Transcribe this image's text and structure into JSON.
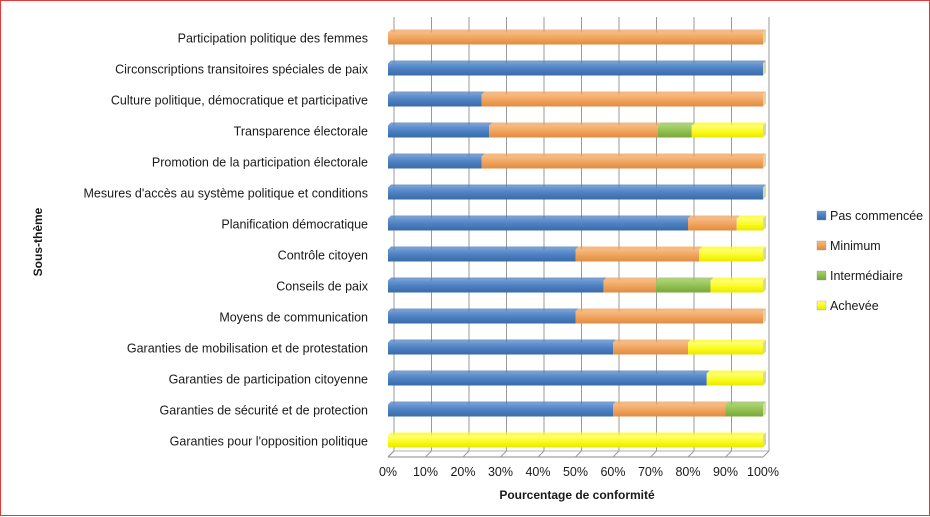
{
  "chart_data": {
    "type": "bar",
    "orientation": "horizontal",
    "stacked": true,
    "ylabel": "Sous-thème",
    "xlabel": "Pourcentage de conformité",
    "xlim": [
      0,
      100
    ],
    "xticks": [
      "0%",
      "10%",
      "20%",
      "30%",
      "40%",
      "50%",
      "60%",
      "70%",
      "80%",
      "90%",
      "100%"
    ],
    "grid": "vertical",
    "legend_position": "right",
    "categories": [
      "Participation politique des femmes",
      "Circonscriptions transitoires spéciales de paix",
      "Culture politique, démocratique et participative",
      "Transparence électorale",
      "Promotion de la participation électorale",
      "Mesures d'accès au système politique et conditions",
      "Planification démocratique",
      "Contrôle citoyen",
      "Conseils de paix",
      "Moyens de communication",
      "Garanties de mobilisation et de protestation",
      "Garanties de participation citoyenne",
      "Garanties de sécurité et de protection",
      "Garanties pour l'opposition politique"
    ],
    "series": [
      {
        "name": "Pas commencée",
        "color": "#4a7ebf",
        "values": [
          0,
          100,
          25,
          27,
          25,
          100,
          80,
          50,
          57.5,
          50,
          60,
          85,
          60,
          0
        ]
      },
      {
        "name": "Minimum",
        "color": "#f0a25a",
        "values": [
          100,
          0,
          75,
          45,
          75,
          0,
          13,
          33,
          14,
          50,
          20,
          0,
          30,
          0
        ]
      },
      {
        "name": "Intermédiaire",
        "color": "#8fbe4f",
        "values": [
          0,
          0,
          0,
          9,
          0,
          0,
          0,
          0,
          14.5,
          0,
          0,
          0,
          10,
          0
        ]
      },
      {
        "name": "Achevée",
        "color": "#fbfb1c",
        "values": [
          0,
          0,
          0,
          19,
          0,
          0,
          7,
          17,
          14,
          0,
          20,
          15,
          0,
          100
        ]
      }
    ]
  }
}
